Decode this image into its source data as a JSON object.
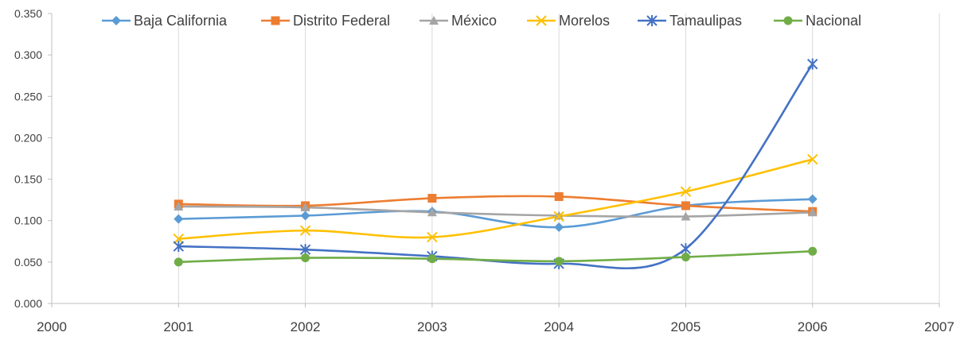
{
  "chart_data": {
    "type": "line",
    "title": "",
    "xlabel": "",
    "ylabel": "",
    "x_ticks": [
      "2000",
      "2001",
      "2002",
      "2003",
      "2004",
      "2005",
      "2006",
      "2007"
    ],
    "y_ticks": [
      "0.000",
      "0.050",
      "0.100",
      "0.150",
      "0.200",
      "0.250",
      "0.300",
      "0.350"
    ],
    "xlim": [
      2000,
      2007
    ],
    "ylim": [
      0,
      0.35
    ],
    "grid": "vertical",
    "legend_position": "top",
    "x": [
      2001,
      2002,
      2003,
      2004,
      2005,
      2006
    ],
    "series": [
      {
        "name": "Baja California",
        "color": "#5B9BD5",
        "marker": "diamond",
        "values": [
          0.102,
          0.106,
          0.111,
          0.092,
          0.118,
          0.126
        ]
      },
      {
        "name": "Distrito Federal",
        "color": "#ED7D31",
        "marker": "square",
        "values": [
          0.12,
          0.118,
          0.127,
          0.129,
          0.118,
          0.111
        ]
      },
      {
        "name": "México",
        "color": "#A5A5A5",
        "marker": "triangle",
        "values": [
          0.117,
          0.116,
          0.11,
          0.106,
          0.105,
          0.11
        ]
      },
      {
        "name": "Morelos",
        "color": "#FFC000",
        "marker": "x",
        "values": [
          0.078,
          0.088,
          0.08,
          0.105,
          0.135,
          0.174
        ]
      },
      {
        "name": "Tamaulipas",
        "color": "#4472C4",
        "marker": "star",
        "values": [
          0.069,
          0.065,
          0.057,
          0.048,
          0.066,
          0.289
        ]
      },
      {
        "name": "Nacional",
        "color": "#70AD47",
        "marker": "circle",
        "values": [
          0.05,
          0.055,
          0.054,
          0.051,
          0.056,
          0.063
        ]
      }
    ]
  }
}
